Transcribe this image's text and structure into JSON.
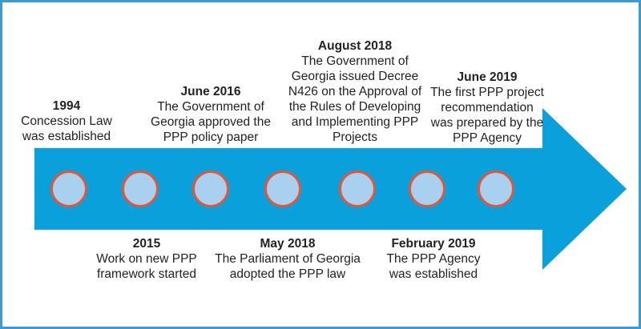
{
  "colors": {
    "arrow": "#0aa0dc",
    "marker_fill": "#a9d1ef",
    "marker_border": "#e2573b",
    "frame_border": "#3d9ad1",
    "text": "#222222"
  },
  "timeline": {
    "events_above": [
      {
        "date": "1994",
        "text": "Concession Law\nwas established"
      },
      {
        "date": "June 2016",
        "text": "The Government of\nGeorgia approved the\nPPP policy paper"
      },
      {
        "date": "August 2018",
        "text": "The Government of\nGeorgia issued Decree\nN426 on the Approval of\nthe Rules of Developing\nand Implementing PPP\nProjects"
      },
      {
        "date": "June 2019",
        "text": "The first PPP project\nrecommendation\nwas prepared by the\nPPP Agency"
      }
    ],
    "events_below": [
      {
        "date": "2015",
        "text": "Work on new PPP\nframework started"
      },
      {
        "date": "May 2018",
        "text": "The Parliament of Georgia\nadopted the PPP law"
      },
      {
        "date": "February 2019",
        "text": "The PPP Agency\nwas established"
      }
    ]
  }
}
